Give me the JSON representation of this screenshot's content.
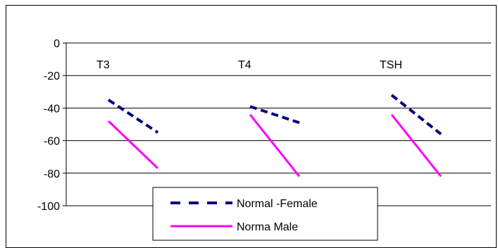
{
  "chart_data": {
    "type": "line",
    "categories": [
      "T3",
      "T4",
      "TSH"
    ],
    "ylim": [
      -100,
      0
    ],
    "yticks": [
      0,
      -20,
      -40,
      -60,
      -80,
      -100
    ],
    "grid": true,
    "legend_position": "bottom-center",
    "series": [
      {
        "name": "Normal -Female",
        "color": "#00007f",
        "dash": "dashed",
        "segments": [
          {
            "category": "T3",
            "values": [
              -35,
              -55
            ]
          },
          {
            "category": "T4",
            "values": [
              -39,
              -49
            ]
          },
          {
            "category": "TSH",
            "values": [
              -32,
              -56
            ]
          }
        ]
      },
      {
        "name": "Norma Male",
        "color": "#ff00ff",
        "dash": "solid",
        "segments": [
          {
            "category": "T3",
            "values": [
              -48,
              -77
            ]
          },
          {
            "category": "T4",
            "values": [
              -44,
              -82
            ]
          },
          {
            "category": "TSH",
            "values": [
              -44,
              -82
            ]
          }
        ]
      }
    ]
  }
}
